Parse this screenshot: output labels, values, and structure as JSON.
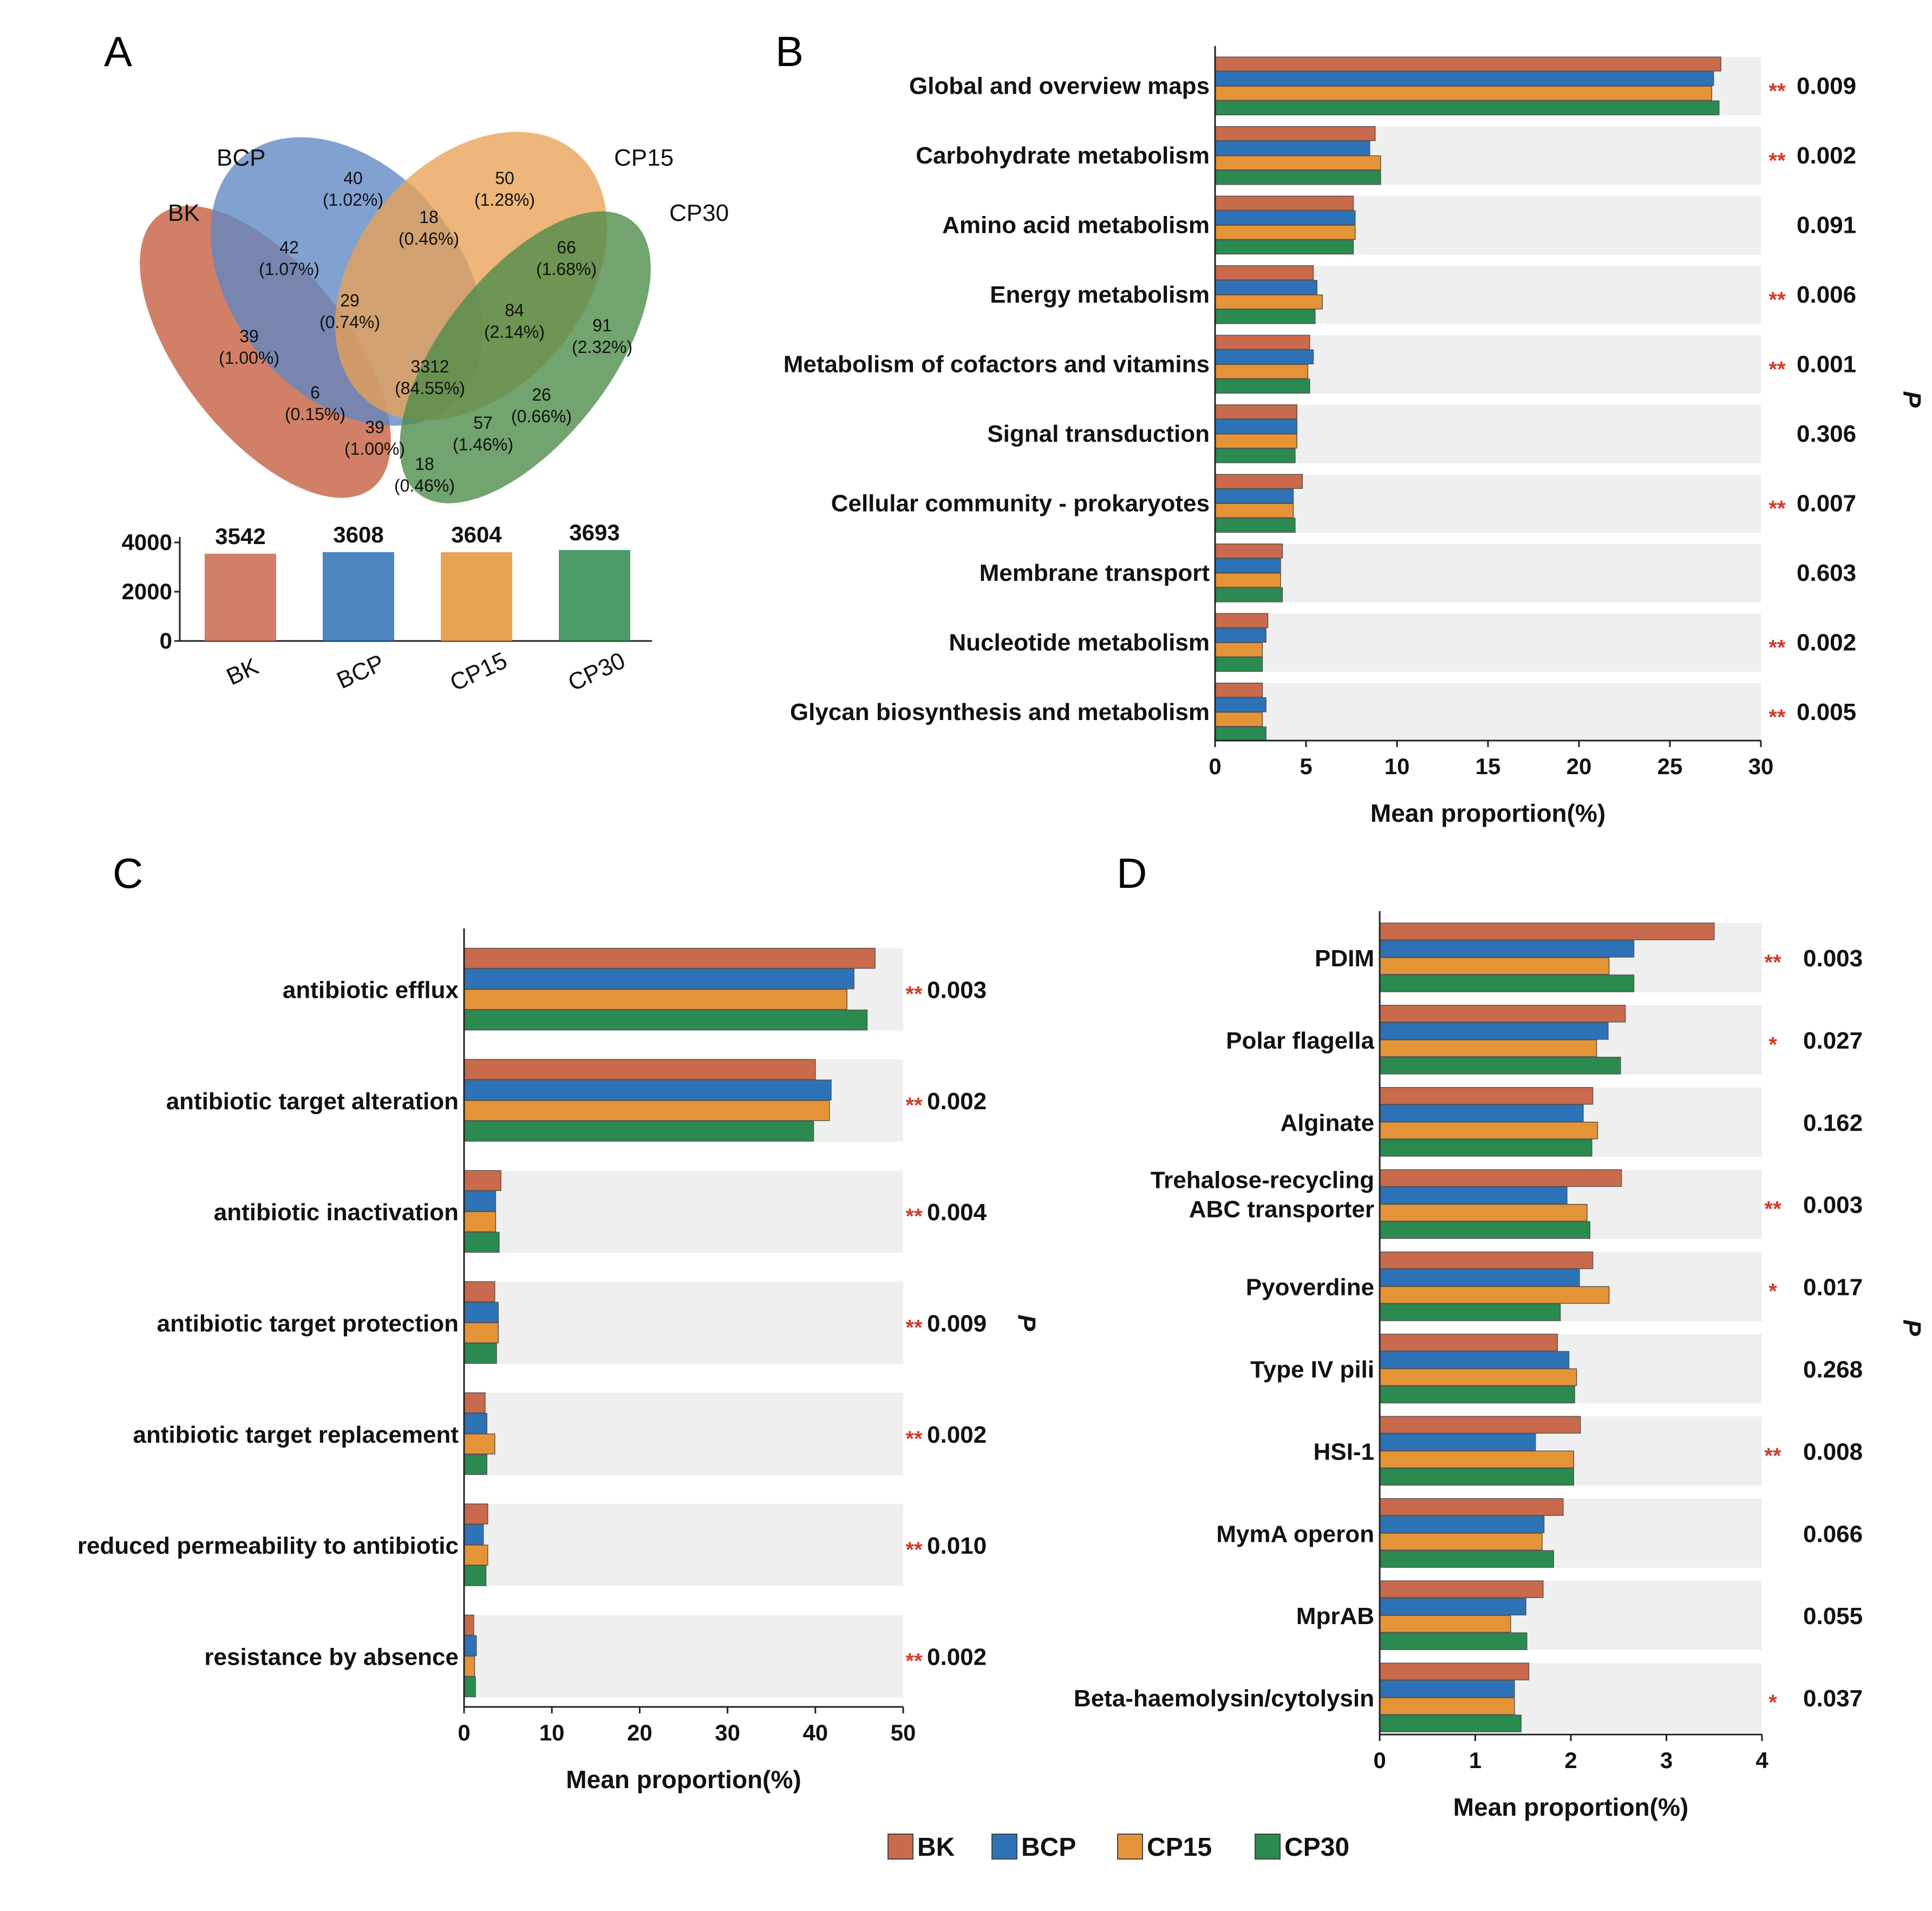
{
  "colors": {
    "BK": "#C96A4C",
    "BCP": "#2D72B6",
    "CP15": "#E49437",
    "CP30": "#2A8A4F",
    "star": "#D33A2A",
    "band": "#EFEFEF"
  },
  "legend": [
    "BK",
    "BCP",
    "CP15",
    "CP30"
  ],
  "panels": {
    "A": "A",
    "B": "B",
    "C": "C",
    "D": "D"
  },
  "venn": {
    "sets": [
      "BK",
      "BCP",
      "CP15",
      "CP30"
    ],
    "regions": [
      {
        "id": "bcp-only",
        "count": "40",
        "pct": "(1.02%)"
      },
      {
        "id": "cp15-only",
        "count": "50",
        "pct": "(1.28%)"
      },
      {
        "id": "bcp-cp15",
        "count": "18",
        "pct": "(0.46%)"
      },
      {
        "id": "bk-bcp",
        "count": "42",
        "pct": "(1.07%)"
      },
      {
        "id": "cp15-cp30",
        "count": "66",
        "pct": "(1.68%)"
      },
      {
        "id": "bk-bcp-cp15",
        "count": "29",
        "pct": "(0.74%)"
      },
      {
        "id": "bcp-cp15-cp30",
        "count": "84",
        "pct": "(2.14%)"
      },
      {
        "id": "bk-only",
        "count": "39",
        "pct": "(1.00%)"
      },
      {
        "id": "cp30-only",
        "count": "91",
        "pct": "(2.32%)"
      },
      {
        "id": "all",
        "count": "3312",
        "pct": "(84.55%)"
      },
      {
        "id": "bk-cp15",
        "count": "6",
        "pct": "(0.15%)"
      },
      {
        "id": "bcp-cp30",
        "count": "26",
        "pct": "(0.66%)"
      },
      {
        "id": "bk-cp15-cp30",
        "count": "39",
        "pct": "(1.00%)"
      },
      {
        "id": "bk-bcp-cp30",
        "count": "57",
        "pct": "(1.46%)"
      },
      {
        "id": "bk-cp30",
        "count": "18",
        "pct": "(0.46%)"
      }
    ]
  },
  "chart_data": [
    {
      "panel": "A",
      "type": "bar",
      "categories": [
        "BK",
        "BCP",
        "CP15",
        "CP30"
      ],
      "values": [
        3542,
        3608,
        3604,
        3693
      ],
      "value_labels": [
        "3542",
        "3608",
        "3604",
        "3693"
      ],
      "ylim": [
        0,
        4000
      ],
      "yticks": [
        0,
        2000,
        4000
      ],
      "title": "",
      "xlabel": "",
      "ylabel": ""
    },
    {
      "panel": "B",
      "type": "bar",
      "orientation": "horizontal",
      "xlabel": "Mean proportion(%)",
      "ylabel": "P",
      "xlim": [
        0,
        30
      ],
      "xticks": [
        0,
        5,
        10,
        15,
        20,
        25,
        30
      ],
      "categories": [
        "Global and overview maps",
        "Carbohydrate metabolism",
        "Amino acid metabolism",
        "Energy metabolism",
        "Metabolism of cofactors and vitamins",
        "Signal transduction",
        "Cellular community - prokaryotes",
        "Membrane transport",
        "Nucleotide metabolism",
        "Glycan biosynthesis and metabolism"
      ],
      "series": [
        {
          "name": "BK",
          "values": [
            27.8,
            8.8,
            7.6,
            5.4,
            5.2,
            4.5,
            4.8,
            3.7,
            2.9,
            2.6
          ]
        },
        {
          "name": "BCP",
          "values": [
            27.4,
            8.5,
            7.7,
            5.6,
            5.4,
            4.5,
            4.3,
            3.6,
            2.8,
            2.8
          ]
        },
        {
          "name": "CP15",
          "values": [
            27.3,
            9.1,
            7.7,
            5.9,
            5.1,
            4.5,
            4.3,
            3.6,
            2.6,
            2.6
          ]
        },
        {
          "name": "CP30",
          "values": [
            27.7,
            9.1,
            7.6,
            5.5,
            5.2,
            4.4,
            4.4,
            3.7,
            2.6,
            2.8
          ]
        }
      ],
      "pvalues": [
        "0.009",
        "0.002",
        "0.091",
        "0.006",
        "0.001",
        "0.306",
        "0.007",
        "0.603",
        "0.002",
        "0.005"
      ],
      "stars": [
        "**",
        "**",
        "",
        "**",
        "**",
        "",
        "**",
        "",
        "**",
        "**"
      ]
    },
    {
      "panel": "C",
      "type": "bar",
      "orientation": "horizontal",
      "xlabel": "Mean proportion(%)",
      "ylabel": "P",
      "xlim": [
        0,
        50
      ],
      "xticks": [
        0,
        10,
        20,
        30,
        40,
        50
      ],
      "categories": [
        "antibiotic efflux",
        "antibiotic target alteration",
        "antibiotic inactivation",
        "antibiotic target protection",
        "antibiotic target replacement",
        "reduced permeability to antibiotic",
        "resistance by absence"
      ],
      "series": [
        {
          "name": "BK",
          "values": [
            46.8,
            40.0,
            4.2,
            3.5,
            2.4,
            2.7,
            1.1
          ]
        },
        {
          "name": "BCP",
          "values": [
            44.4,
            41.8,
            3.6,
            3.9,
            2.6,
            2.2,
            1.4
          ]
        },
        {
          "name": "CP15",
          "values": [
            43.6,
            41.6,
            3.6,
            3.9,
            3.5,
            2.7,
            1.2
          ]
        },
        {
          "name": "CP30",
          "values": [
            45.9,
            39.8,
            4.0,
            3.7,
            2.6,
            2.5,
            1.3
          ]
        }
      ],
      "pvalues": [
        "0.003",
        "0.002",
        "0.004",
        "0.009",
        "0.002",
        "0.010",
        "0.002"
      ],
      "stars": [
        "**",
        "**",
        "**",
        "**",
        "**",
        "**",
        "**"
      ]
    },
    {
      "panel": "D",
      "type": "bar",
      "orientation": "horizontal",
      "xlabel": "Mean proportion(%)",
      "ylabel": "P",
      "xlim": [
        0,
        4
      ],
      "xticks": [
        0,
        1,
        2,
        3,
        4
      ],
      "categories": [
        "PDIM",
        "Polar flagella",
        "Alginate",
        "Trehalose-recycling\nABC transporter",
        "Pyoverdine",
        "Type IV pili",
        "HSI-1",
        "MymA operon",
        "MprAB",
        "Beta-haemolysin/cytolysin"
      ],
      "series": [
        {
          "name": "BK",
          "values": [
            3.5,
            2.57,
            2.23,
            2.53,
            2.23,
            1.86,
            2.1,
            1.92,
            1.71,
            1.56
          ]
        },
        {
          "name": "BCP",
          "values": [
            2.66,
            2.39,
            2.13,
            1.96,
            2.09,
            1.98,
            1.63,
            1.72,
            1.53,
            1.41
          ]
        },
        {
          "name": "CP15",
          "values": [
            2.4,
            2.27,
            2.28,
            2.17,
            2.4,
            2.06,
            2.03,
            1.7,
            1.37,
            1.41
          ]
        },
        {
          "name": "CP30",
          "values": [
            2.66,
            2.52,
            2.22,
            2.2,
            1.89,
            2.04,
            2.03,
            1.82,
            1.54,
            1.48
          ]
        }
      ],
      "pvalues": [
        "0.003",
        "0.027",
        "0.162",
        "0.003",
        "0.017",
        "0.268",
        "0.008",
        "0.066",
        "0.055",
        "0.037"
      ],
      "stars": [
        "**",
        "*",
        "",
        "**",
        "*",
        "",
        "**",
        "",
        "",
        "*"
      ]
    }
  ]
}
